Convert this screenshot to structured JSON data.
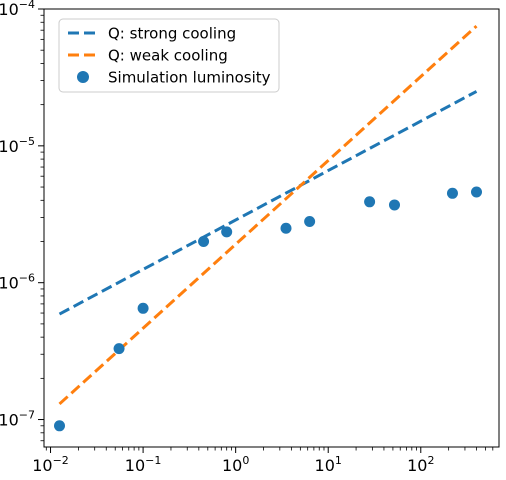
{
  "chart_data": {
    "type": "scatter",
    "xscale": "log",
    "yscale": "log",
    "xlim": [
      0.0085,
      700
    ],
    "ylim": [
      6.3e-08,
      0.0001
    ],
    "grid": false,
    "legend_position": "top-left",
    "xticks": [
      {
        "value": 0.01,
        "base": "10",
        "exp": "−2"
      },
      {
        "value": 0.1,
        "base": "10",
        "exp": "−1"
      },
      {
        "value": 1,
        "base": "10",
        "exp": "0"
      },
      {
        "value": 10,
        "base": "10",
        "exp": "1"
      },
      {
        "value": 100,
        "base": "10",
        "exp": "2"
      }
    ],
    "yticks": [
      {
        "value": 1e-07,
        "base": "10",
        "exp": "−7"
      },
      {
        "value": 1e-06,
        "base": "10",
        "exp": "−6"
      },
      {
        "value": 1e-05,
        "base": "10",
        "exp": "−5"
      },
      {
        "value": 0.0001,
        "base": "10",
        "exp": "−4"
      }
    ],
    "series": [
      {
        "name": "Q: strong cooling",
        "kind": "line",
        "style": "dashed",
        "color": "#1f77b4",
        "x": [
          0.0125,
          400
        ],
        "y": [
          5.9e-07,
          2.5e-05
        ]
      },
      {
        "name": "Q: weak cooling",
        "kind": "line",
        "style": "dashed",
        "color": "#ff7f0e",
        "x": [
          0.0125,
          400
        ],
        "y": [
          1.3e-07,
          7.5e-05
        ]
      },
      {
        "name": "Simulation luminosity",
        "kind": "scatter",
        "color": "#1f77b4",
        "x": [
          0.0125,
          0.055,
          0.1,
          0.45,
          0.8,
          3.5,
          6.3,
          28,
          52,
          220,
          400
        ],
        "y": [
          9e-08,
          3.3e-07,
          6.5e-07,
          2e-06,
          2.35e-06,
          2.5e-06,
          2.8e-06,
          3.9e-06,
          3.7e-06,
          4.5e-06,
          4.6e-06
        ]
      }
    ]
  }
}
